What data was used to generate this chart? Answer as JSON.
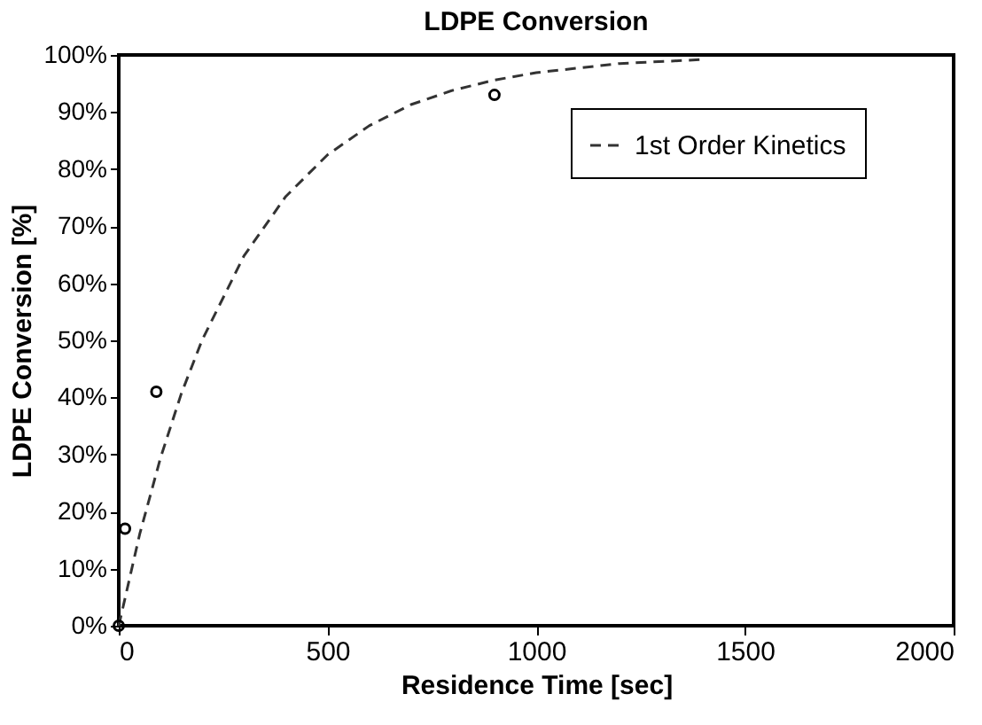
{
  "chart_data": {
    "type": "scatter",
    "title": "LDPE Conversion",
    "xlabel": "Residence Time [sec]",
    "ylabel": "LDPE Conversion [%]",
    "xlim": [
      0,
      2000
    ],
    "xticks": [
      0,
      500,
      1000,
      1500,
      2000
    ],
    "ylim": [
      0,
      100
    ],
    "yticks": [
      {
        "value": 0,
        "label": "0%"
      },
      {
        "value": 10,
        "label": "10%"
      },
      {
        "value": 20,
        "label": "20%"
      },
      {
        "value": 30,
        "label": "30%"
      },
      {
        "value": 40,
        "label": "40%"
      },
      {
        "value": 50,
        "label": "50%"
      },
      {
        "value": 60,
        "label": "60%"
      },
      {
        "value": 70,
        "label": "70%"
      },
      {
        "value": 80,
        "label": "80%"
      },
      {
        "value": 90,
        "label": "90%"
      },
      {
        "value": 100,
        "label": "100%"
      }
    ],
    "grid": false,
    "legend": "top right",
    "series": [
      {
        "type": "scatter",
        "color": "#000000",
        "marker": "circle",
        "x": [
          0,
          15,
          90,
          900
        ],
        "values": [
          0,
          17,
          41,
          93
        ]
      },
      {
        "type": "line",
        "name": "1st Order Kinetics",
        "color": "#333333",
        "line_style": "dashed",
        "marker": "none",
        "x": [
          0,
          50,
          100,
          150,
          200,
          300,
          400,
          500,
          600,
          700,
          800,
          900,
          1000,
          1200,
          1400
        ],
        "values": [
          0,
          16,
          29.4,
          40.7,
          50.1,
          64.8,
          75.2,
          82.5,
          87.6,
          91.3,
          93.8,
          95.6,
          96.9,
          98.5,
          99.2
        ]
      }
    ]
  }
}
